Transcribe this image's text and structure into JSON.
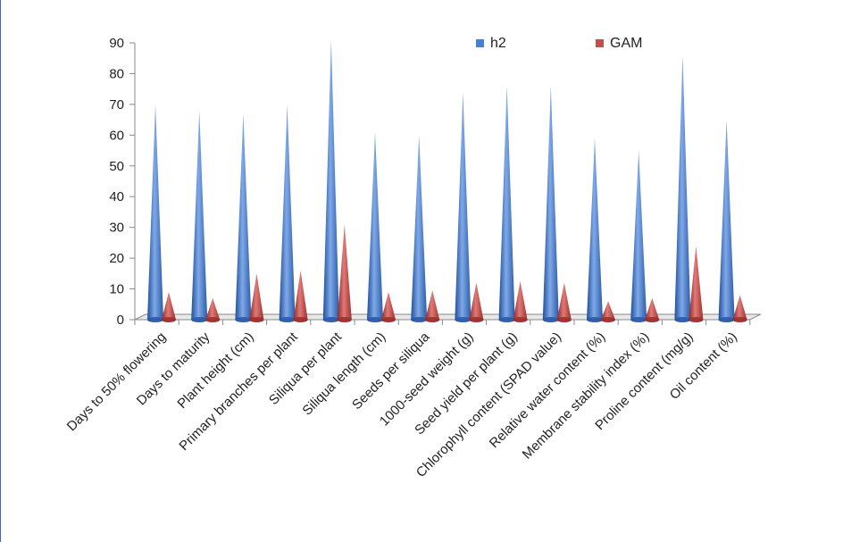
{
  "chart_data": {
    "type": "bar",
    "style": "3d-cone",
    "categories": [
      "Days to 50% flowering",
      "Days to maturity",
      "Plant height (cm)",
      "Primary branches per plant",
      "Siliqua per plant",
      "Siliqua length (cm)",
      "Seeds per siliqua",
      "1000-seed weight (g)",
      "Seed yield per plant (g)",
      "Chlorophyll content (SPAD value)",
      "Relative water content (%)",
      "Membrane stability index (%)",
      "Proline content (mg/g)",
      "Oil content (%)"
    ],
    "series": [
      {
        "name": "h2",
        "color": "#4a7fd0",
        "values": [
          70,
          68,
          67,
          70,
          91,
          61,
          60,
          74,
          76,
          76,
          59,
          55,
          86,
          65
        ]
      },
      {
        "name": "GAM",
        "color": "#c0504d",
        "values": [
          9,
          7,
          15,
          16,
          31,
          9,
          9.5,
          12,
          12.5,
          12,
          6,
          7,
          24,
          8
        ]
      }
    ],
    "ylim": [
      0,
      90
    ],
    "yticks": [
      0,
      10,
      20,
      30,
      40,
      50,
      60,
      70,
      80,
      90
    ],
    "xlabel": "",
    "ylabel": "",
    "title": "",
    "grid": false,
    "legend_position": "top-right"
  }
}
